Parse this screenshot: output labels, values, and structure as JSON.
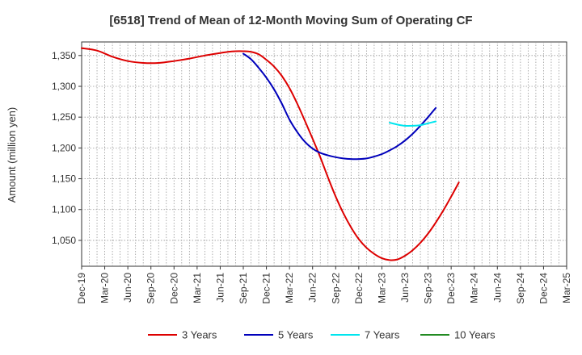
{
  "chart_data": {
    "type": "line",
    "title": "[6518]  Trend of Mean of 12-Month Moving Sum of Operating CF",
    "xlabel": "",
    "ylabel": "Amount (million yen)",
    "ylim": [
      1008,
      1372
    ],
    "yticks": [
      1050,
      1100,
      1150,
      1200,
      1250,
      1300,
      1350
    ],
    "ytick_labels": [
      "1,050",
      "1,100",
      "1,150",
      "1,200",
      "1,250",
      "1,300",
      "1,350"
    ],
    "x_start": "Dec-19",
    "x_months": 63,
    "xtick_labels": [
      "Dec-19",
      "Mar-20",
      "Jun-20",
      "Sep-20",
      "Dec-20",
      "Mar-21",
      "Jun-21",
      "Sep-21",
      "Dec-21",
      "Mar-22",
      "Jun-22",
      "Sep-22",
      "Dec-22",
      "Mar-23",
      "Jun-23",
      "Sep-23",
      "Dec-23",
      "Mar-24",
      "Jun-24",
      "Sep-24",
      "Dec-24",
      "Mar-25"
    ],
    "grid": true,
    "legend_position": "bottom",
    "series": [
      {
        "name": "3 Years",
        "color": "#dd0000",
        "points": [
          [
            0,
            1362
          ],
          [
            2,
            1358
          ],
          [
            4,
            1348
          ],
          [
            6,
            1341
          ],
          [
            8,
            1338
          ],
          [
            10,
            1338
          ],
          [
            12,
            1341
          ],
          [
            14,
            1345
          ],
          [
            16,
            1350
          ],
          [
            18,
            1354
          ],
          [
            19,
            1356
          ],
          [
            20,
            1357
          ],
          [
            21,
            1357
          ],
          [
            22,
            1356
          ],
          [
            23,
            1352
          ],
          [
            24,
            1343
          ],
          [
            25,
            1332
          ],
          [
            26,
            1317
          ],
          [
            27,
            1297
          ],
          [
            28,
            1272
          ],
          [
            29,
            1244
          ],
          [
            30,
            1215
          ],
          [
            31,
            1185
          ],
          [
            32,
            1152
          ],
          [
            33,
            1121
          ],
          [
            34,
            1094
          ],
          [
            35,
            1071
          ],
          [
            36,
            1052
          ],
          [
            37,
            1038
          ],
          [
            38,
            1028
          ],
          [
            39,
            1021
          ],
          [
            40,
            1018
          ],
          [
            41,
            1019
          ],
          [
            42,
            1025
          ],
          [
            43,
            1034
          ],
          [
            44,
            1046
          ],
          [
            45,
            1061
          ],
          [
            46,
            1079
          ],
          [
            47,
            1099
          ],
          [
            48,
            1121
          ],
          [
            49,
            1144
          ]
        ]
      },
      {
        "name": "5 Years",
        "color": "#0000bb",
        "points": [
          [
            21,
            1353
          ],
          [
            22,
            1344
          ],
          [
            23,
            1330
          ],
          [
            24,
            1314
          ],
          [
            25,
            1295
          ],
          [
            26,
            1272
          ],
          [
            27,
            1246
          ],
          [
            28,
            1226
          ],
          [
            29,
            1210
          ],
          [
            30,
            1199
          ],
          [
            31,
            1192
          ],
          [
            32,
            1188
          ],
          [
            33,
            1185
          ],
          [
            34,
            1183
          ],
          [
            35,
            1182
          ],
          [
            36,
            1182
          ],
          [
            37,
            1183
          ],
          [
            38,
            1186
          ],
          [
            39,
            1190
          ],
          [
            40,
            1196
          ],
          [
            41,
            1203
          ],
          [
            42,
            1212
          ],
          [
            43,
            1223
          ],
          [
            44,
            1236
          ],
          [
            45,
            1250
          ],
          [
            46,
            1265
          ]
        ]
      },
      {
        "name": "7 Years",
        "color": "#00e5ee",
        "points": [
          [
            40,
            1241
          ],
          [
            41,
            1238
          ],
          [
            42,
            1236
          ],
          [
            43,
            1236
          ],
          [
            44,
            1237
          ],
          [
            45,
            1240
          ],
          [
            46,
            1243
          ]
        ]
      },
      {
        "name": "10 Years",
        "color": "#228b22",
        "points": []
      }
    ]
  }
}
